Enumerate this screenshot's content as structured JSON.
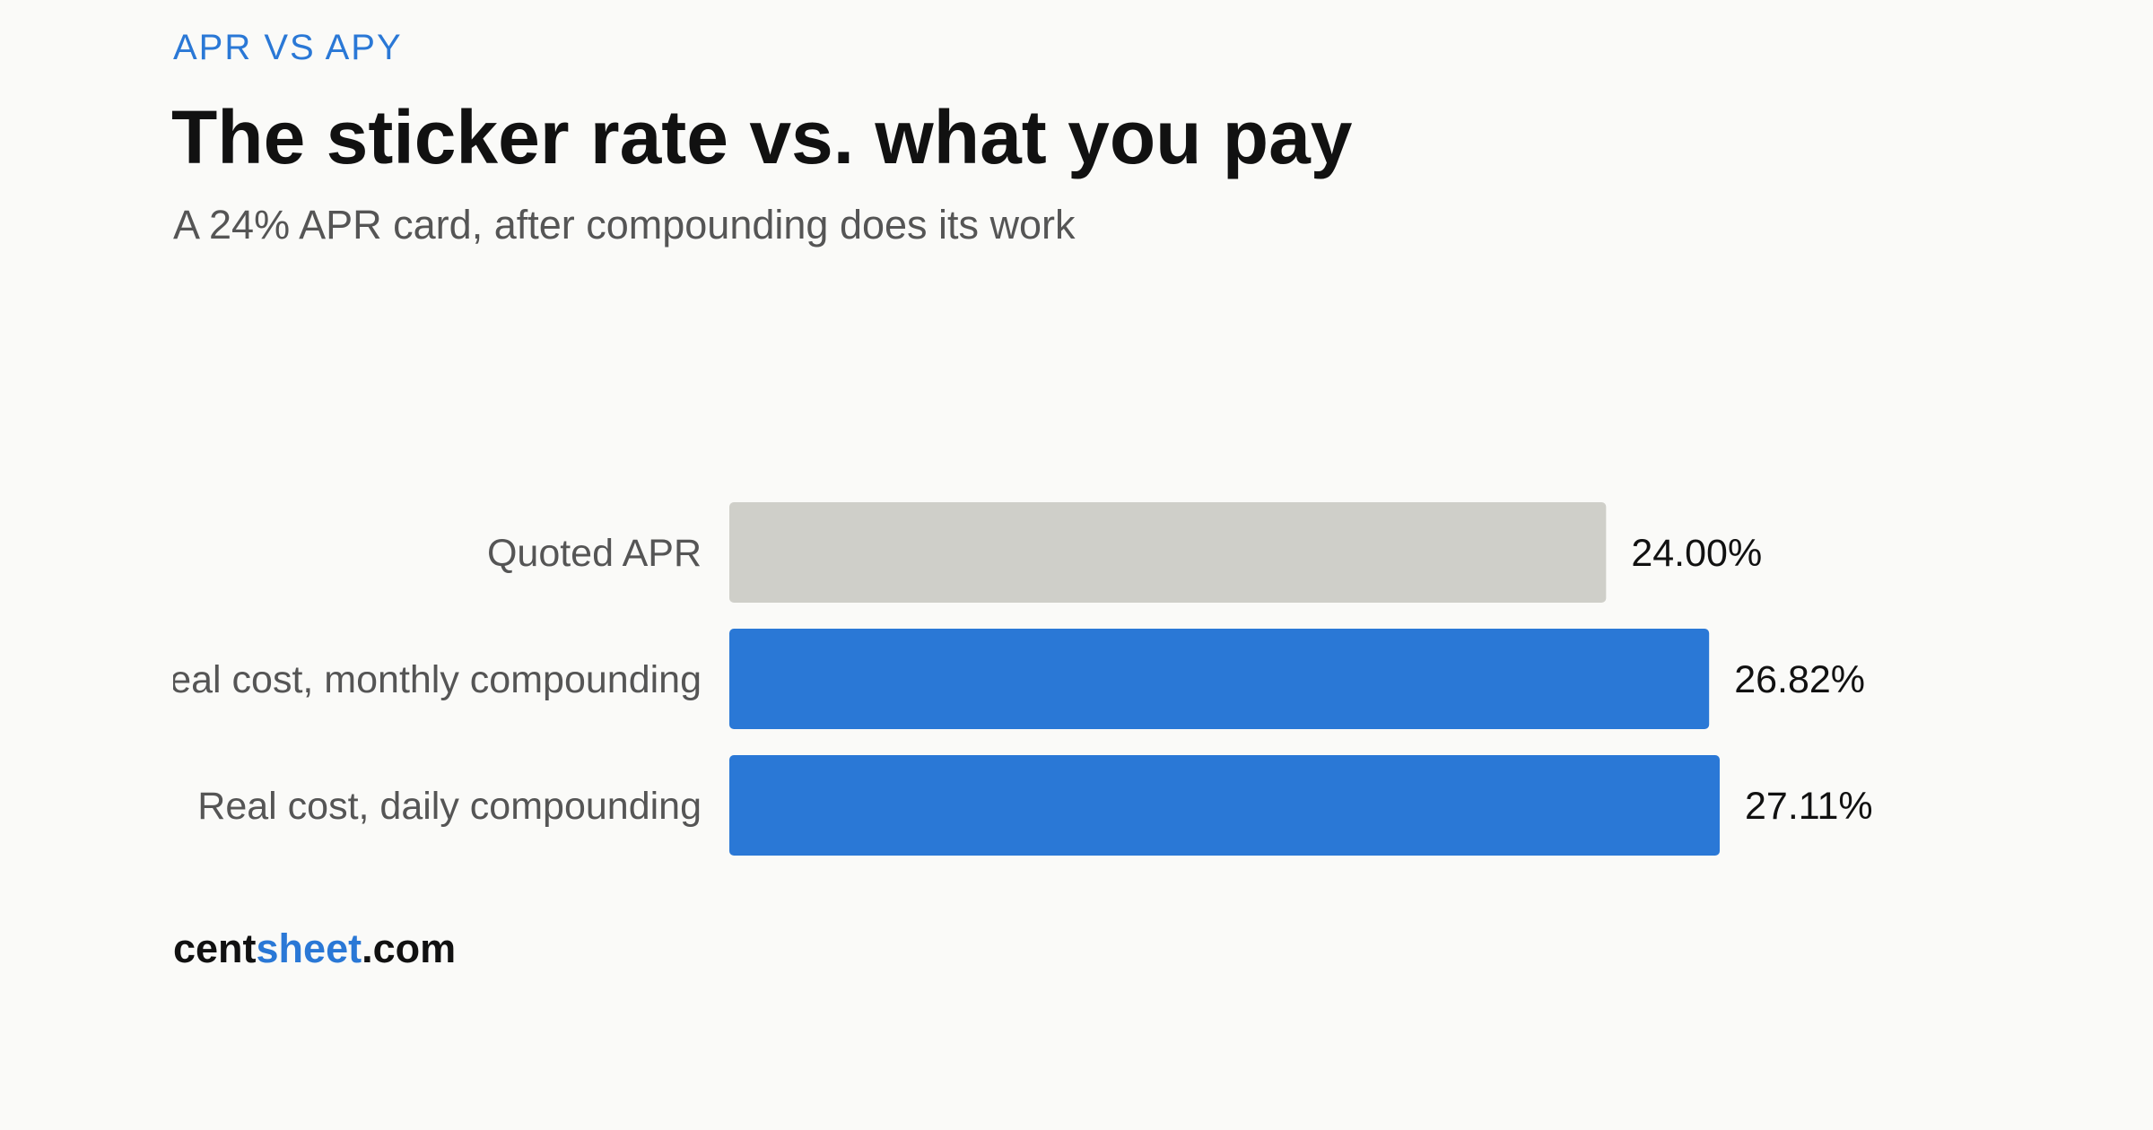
{
  "chart_data": {
    "type": "bar",
    "orientation": "horizontal",
    "kicker": "APR VS APY",
    "title": "The sticker rate vs. what you pay",
    "subtitle": "A 24% APR card, after compounding does its work",
    "categories": [
      "Quoted APR",
      "Real cost, monthly compounding",
      "Real cost, daily compounding"
    ],
    "values": [
      24.0,
      26.82,
      27.11
    ],
    "value_labels": [
      "24.00%",
      "26.82%",
      "27.11%"
    ],
    "colors": [
      "#cfcfc9",
      "#2a78d6",
      "#2a78d6"
    ],
    "footer": [
      "cent",
      "sheet",
      ".com"
    ]
  }
}
